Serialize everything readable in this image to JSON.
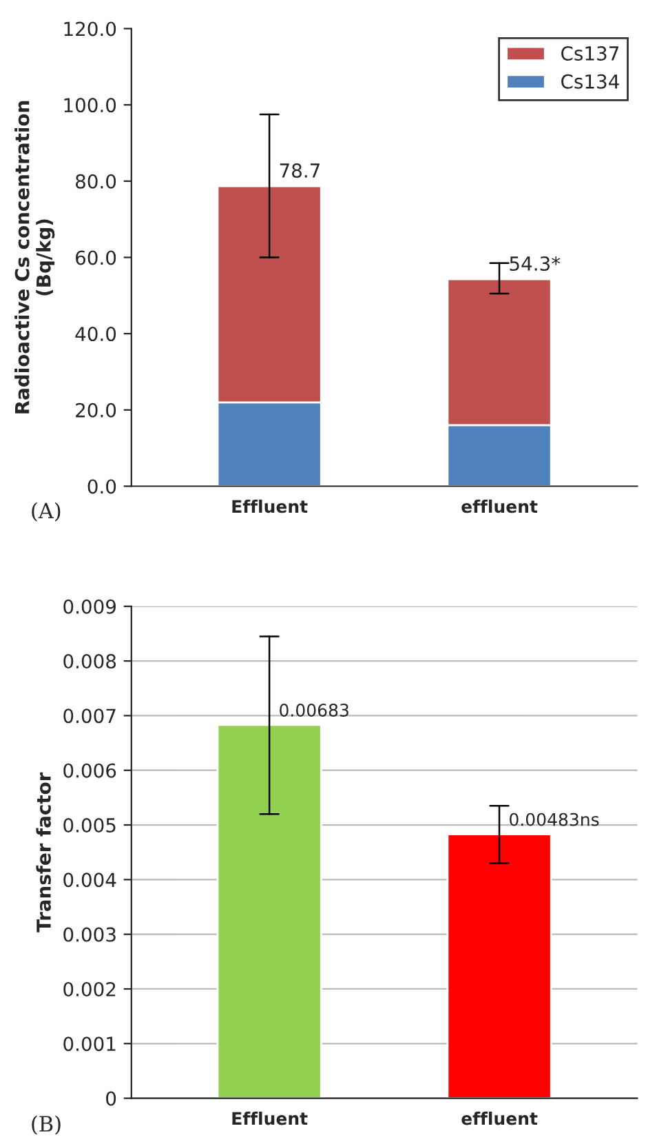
{
  "chart_data": [
    {
      "type": "bar",
      "stacked": true,
      "categories": [
        "Effluent",
        "effluent"
      ],
      "ylabel": "Radioactive Cs concentration\n(Bq/kg)",
      "ylim": [
        0,
        120
      ],
      "yticks": [
        {
          "value": 0,
          "label": "0.0"
        },
        {
          "value": 20,
          "label": "20.0"
        },
        {
          "value": 40,
          "label": "40.0"
        },
        {
          "value": 60,
          "label": "60.0"
        },
        {
          "value": 80,
          "label": "80.0"
        },
        {
          "value": 100,
          "label": "100.0"
        },
        {
          "value": 120,
          "label": "120.0"
        }
      ],
      "grid": false,
      "legend": "top right",
      "series": [
        {
          "name": "Cs134",
          "color": "#4f81bd",
          "values": [
            22,
            16
          ]
        },
        {
          "name": "Cs137",
          "color": "#c0504d",
          "values": [
            56.7,
            38.3
          ],
          "errors": [
            [
              60,
              97.5
            ],
            [
              50.5,
              58.5
            ]
          ]
        }
      ],
      "totals": [
        "78.7",
        "54.3*"
      ],
      "annotations": [
        "(A)"
      ]
    },
    {
      "type": "bar",
      "categories": [
        "Effluent",
        "effluent"
      ],
      "ylabel": "Transfer factor",
      "ylim": [
        0,
        0.009
      ],
      "yticks": [
        0,
        0.001,
        0.002,
        0.003,
        0.004,
        0.005,
        0.006,
        0.007,
        0.008,
        0.009
      ],
      "grid": "y",
      "values": [
        0.00683,
        0.00483
      ],
      "colors": [
        "#92d050",
        "#ff0000"
      ],
      "errors": [
        [
          0.0052,
          0.00845
        ],
        [
          0.0043,
          0.00535
        ]
      ],
      "value_labels": [
        "0.00683",
        "0.00483ns"
      ],
      "annotations": [
        "(B)"
      ]
    }
  ]
}
